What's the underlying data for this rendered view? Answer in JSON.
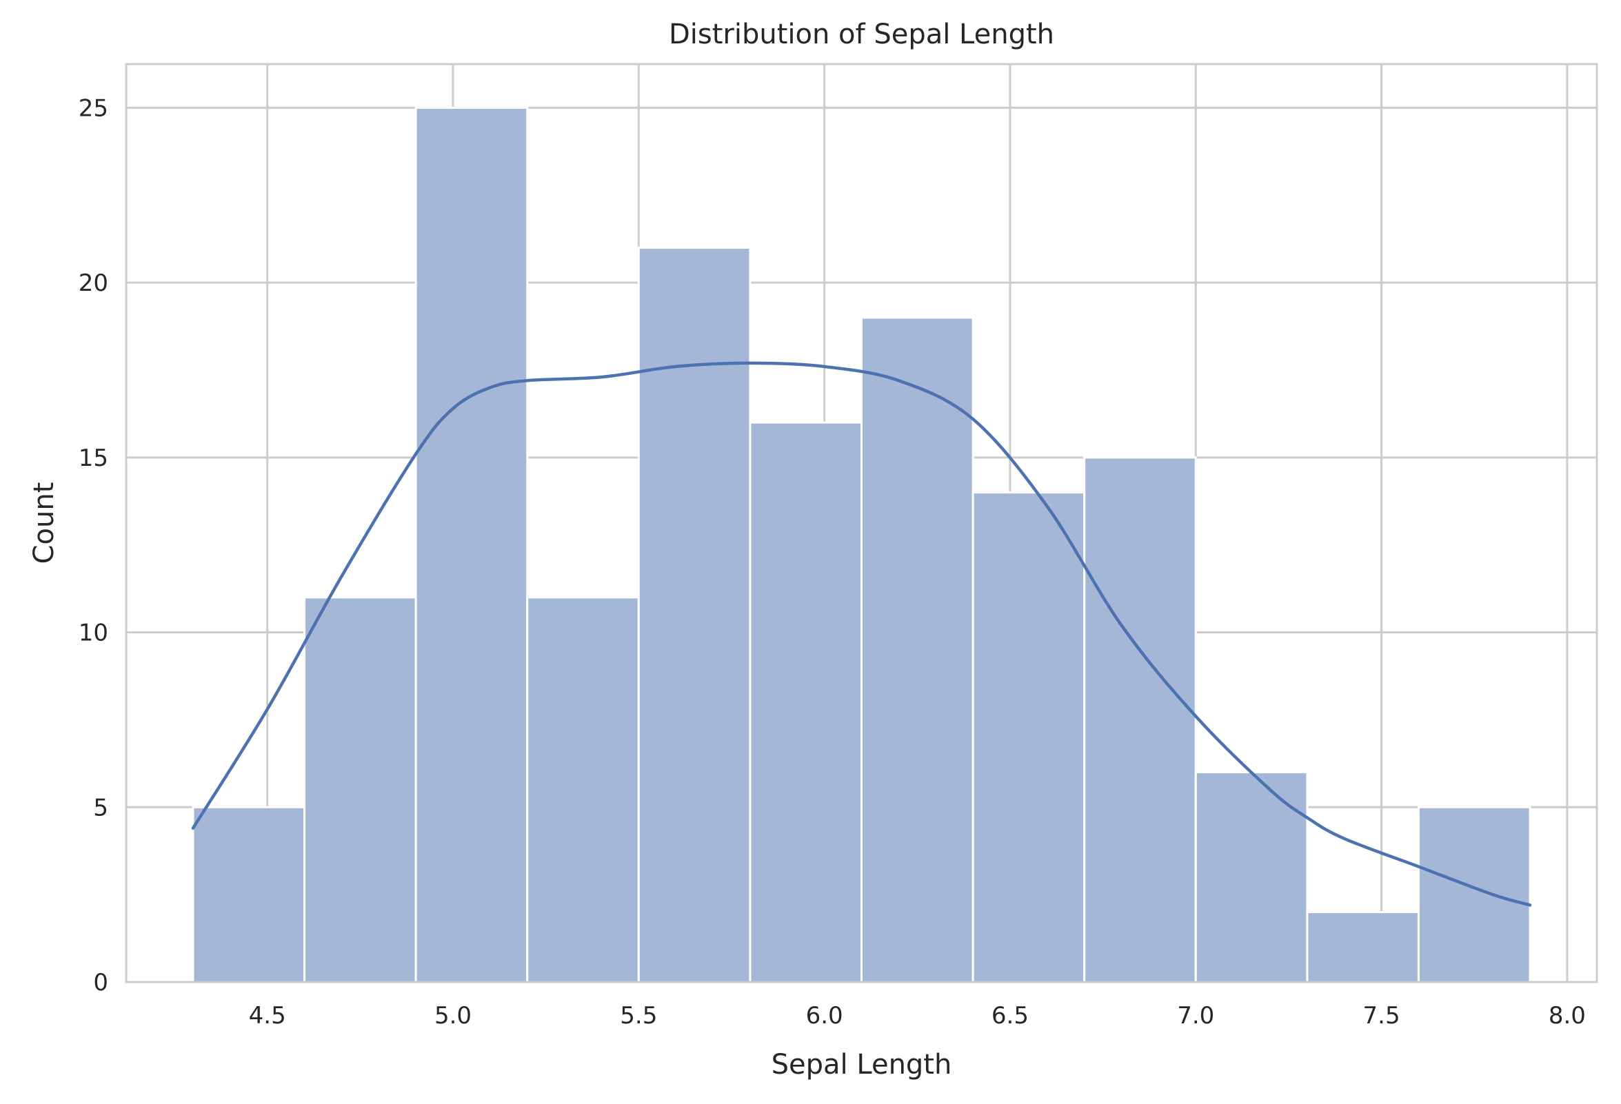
{
  "chart_data": {
    "type": "bar",
    "title": "Distribution of Sepal Length",
    "xlabel": "Sepal Length",
    "ylabel": "Count",
    "xlim": [
      4.12,
      8.08
    ],
    "ylim": [
      0,
      26.25
    ],
    "xticks": [
      "4.5",
      "5.0",
      "5.5",
      "6.0",
      "6.5",
      "7.0",
      "7.5",
      "8.0"
    ],
    "yticks": [
      "0",
      "5",
      "10",
      "15",
      "20",
      "25"
    ],
    "grid": true,
    "bins": [
      {
        "x0": 4.3,
        "x1": 4.6,
        "count": 5
      },
      {
        "x0": 4.6,
        "x1": 4.9,
        "count": 11
      },
      {
        "x0": 4.9,
        "x1": 5.2,
        "count": 25
      },
      {
        "x0": 5.2,
        "x1": 5.5,
        "count": 11
      },
      {
        "x0": 5.5,
        "x1": 5.8,
        "count": 21
      },
      {
        "x0": 5.8,
        "x1": 6.1,
        "count": 16
      },
      {
        "x0": 6.1,
        "x1": 6.4,
        "count": 19
      },
      {
        "x0": 6.4,
        "x1": 6.7,
        "count": 14
      },
      {
        "x0": 6.7,
        "x1": 7.0,
        "count": 15
      },
      {
        "x0": 7.0,
        "x1": 7.3,
        "count": 6
      },
      {
        "x0": 7.3,
        "x1": 7.6,
        "count": 2
      },
      {
        "x0": 7.6,
        "x1": 7.9,
        "count": 5
      }
    ],
    "kde": {
      "x": [
        4.3,
        4.5,
        4.7,
        4.9,
        5.0,
        5.1,
        5.2,
        5.4,
        5.6,
        5.8,
        6.0,
        6.2,
        6.4,
        6.6,
        6.8,
        7.0,
        7.2,
        7.3,
        7.4,
        7.6,
        7.8,
        7.9
      ],
      "y": [
        4.4,
        7.8,
        11.6,
        15.1,
        16.4,
        17.0,
        17.2,
        17.3,
        17.6,
        17.7,
        17.6,
        17.2,
        16.1,
        13.6,
        10.2,
        7.6,
        5.5,
        4.7,
        4.1,
        3.3,
        2.5,
        2.2
      ]
    },
    "colors": {
      "bar_fill": "#a5b7d7",
      "bar_edge": "#ffffff",
      "kde_line": "#4c72b0",
      "grid": "#cccccc",
      "spine": "#cccccc",
      "text": "#262626"
    }
  }
}
